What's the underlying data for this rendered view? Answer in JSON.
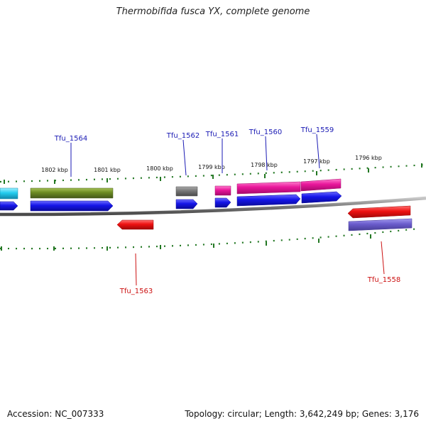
{
  "title": "Thermobifida fusca YX, complete genome",
  "footer": {
    "accession": "Accession: NC_007333",
    "topology": "Topology: circular; Length: 3,642,249 bp; Genes: 3,176"
  },
  "scale_labels": [
    "1802 kbp",
    "1801 kbp",
    "1800 kbp",
    "1799 kbp",
    "1798 kbp",
    "1797 kbp",
    "1796 kbp"
  ],
  "gene_labels": [
    "Tfu_1564",
    "Tfu_1562",
    "Tfu_1561",
    "Tfu_1560",
    "Tfu_1559",
    "Tfu_1563",
    "Tfu_1558"
  ],
  "colors": {
    "label_top": "#1a1ab4",
    "label_bottom": "#cc1111",
    "cds": "#1515e8",
    "trna": "#e8169a",
    "rrna": "#6b8a22",
    "gray": "#777777",
    "reverse": "#ee1111",
    "violet": "#6a5ccc",
    "cyan": "#22ccee",
    "tick": "#227722",
    "backbone": "#7a7a7a"
  }
}
